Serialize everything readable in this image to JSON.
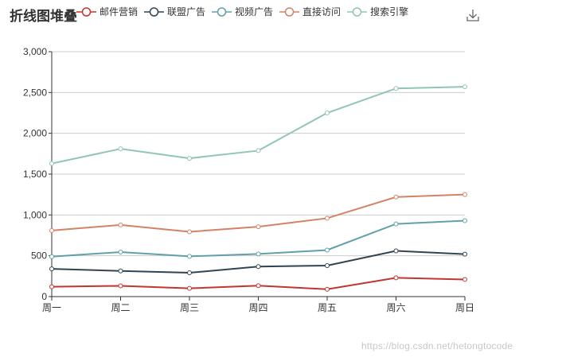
{
  "chart_data": {
    "type": "line",
    "title": "折线图堆叠",
    "categories": [
      "周一",
      "周二",
      "周三",
      "周四",
      "周五",
      "周六",
      "周日"
    ],
    "ylim": [
      0,
      3000
    ],
    "yticks": [
      "0",
      "500",
      "1,000",
      "1,500",
      "2,000",
      "2,500",
      "3,000"
    ],
    "ytick_values": [
      0,
      500,
      1000,
      1500,
      2000,
      2500,
      3000
    ],
    "grid": true,
    "legend_position": "top",
    "series": [
      {
        "name": "邮件营销",
        "color": "#c23531",
        "values": [
          120,
          132,
          101,
          134,
          90,
          230,
          210
        ]
      },
      {
        "name": "联盟广告",
        "color": "#2f4554",
        "values": [
          340,
          314,
          292,
          368,
          380,
          560,
          520
        ]
      },
      {
        "name": "视频广告",
        "color": "#61a0a8",
        "values": [
          490,
          546,
          493,
          522,
          570,
          890,
          930
        ]
      },
      {
        "name": "直接访问",
        "color": "#d48265",
        "values": [
          810,
          878,
          794,
          856,
          960,
          1220,
          1250
        ]
      },
      {
        "name": "搜索引擎",
        "color": "#91c7ae",
        "values": [
          1630,
          1810,
          1694,
          1788,
          2250,
          2550,
          2570
        ]
      }
    ]
  },
  "toolbox": {
    "icon": "download-icon"
  },
  "watermark": "https://blog.csdn.net/hetongtocode"
}
